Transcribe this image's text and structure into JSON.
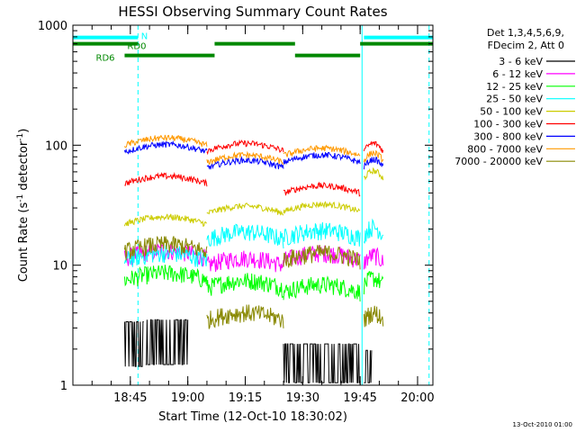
{
  "chart_data": {
    "type": "line",
    "title": "HESSI Observing Summary Count Rates",
    "xlabel": "Start Time (12-Oct-10 18:30:02)",
    "ylabel_main": "Count Rate (s",
    "ylabel_sup1": "-1",
    "ylabel_mid": " detector",
    "ylabel_sup2": "-1",
    "ylabel_end": ")",
    "yscale": "log",
    "ylim": [
      1,
      1000
    ],
    "xlim_minutes": [
      0,
      94
    ],
    "xticks": [
      {
        "m": 15,
        "label": "18:45"
      },
      {
        "m": 30,
        "label": "19:00"
      },
      {
        "m": 45,
        "label": "19:15"
      },
      {
        "m": 60,
        "label": "19:30"
      },
      {
        "m": 75,
        "label": "19:45"
      },
      {
        "m": 90,
        "label": "20:00"
      }
    ],
    "yticks": [
      {
        "v": 1,
        "label": "1"
      },
      {
        "v": 10,
        "label": "10"
      },
      {
        "v": 100,
        "label": "100"
      },
      {
        "v": 1000,
        "label": "1000"
      }
    ],
    "legend_header": [
      "Det 1,3,4,5,6,9,",
      "FDecim 2, Att 0"
    ],
    "series": [
      {
        "name": "3 - 6 keV",
        "color": "#000000",
        "style": "noisy_low",
        "segments": [
          [
            13.5,
            18.5,
            2.6
          ],
          [
            19,
            30,
            2.7
          ],
          [
            55,
            75,
            1.7
          ],
          [
            76,
            78,
            1.5
          ]
        ]
      },
      {
        "name": "6 - 12 keV",
        "color": "#ff00ff",
        "segments": [
          [
            13.5,
            35,
            11.5
          ],
          [
            35,
            55,
            10.0
          ],
          [
            55,
            75,
            11.0
          ],
          [
            76,
            81,
            10.5
          ]
        ]
      },
      {
        "name": "12 - 25 keV",
        "color": "#00ff00",
        "segments": [
          [
            13.5,
            35,
            7.5
          ],
          [
            35,
            55,
            6.5
          ],
          [
            55,
            75,
            6.0
          ],
          [
            76,
            81,
            6.8
          ]
        ]
      },
      {
        "name": "25 - 50 keV",
        "color": "#00ffff",
        "segments": [
          [
            13.5,
            35,
            11.0
          ],
          [
            35,
            55,
            16.5
          ],
          [
            55,
            75,
            17.0
          ],
          [
            76,
            81,
            18.0
          ]
        ]
      },
      {
        "name": "50 - 100 keV",
        "color": "#cccc00",
        "segments": [
          [
            13.5,
            35,
            22.0
          ],
          [
            35,
            55,
            27.0
          ],
          [
            55,
            75,
            28.0
          ],
          [
            76,
            81,
            53.0
          ]
        ]
      },
      {
        "name": "100 - 300 keV",
        "color": "#ff0000",
        "segments": [
          [
            13.5,
            35,
            48.0
          ],
          [
            35,
            55,
            90.0
          ],
          [
            55,
            75,
            40.0
          ],
          [
            76,
            81,
            90.0
          ]
        ]
      },
      {
        "name": "300 - 800 keV",
        "color": "#0000ff",
        "segments": [
          [
            13.5,
            35,
            88.0
          ],
          [
            35,
            55,
            65.0
          ],
          [
            55,
            75,
            72.0
          ],
          [
            76,
            81,
            66.0
          ]
        ]
      },
      {
        "name": "800 - 7000 keV",
        "color": "#ff9900",
        "segments": [
          [
            13.5,
            35,
            100.0
          ],
          [
            35,
            55,
            72.0
          ],
          [
            55,
            75,
            82.0
          ],
          [
            76,
            81,
            75.0
          ]
        ]
      },
      {
        "name": "7000 - 20000 keV",
        "color": "#888800",
        "segments": [
          [
            13.5,
            35,
            13.0
          ],
          [
            35,
            55,
            3.5
          ],
          [
            55,
            75,
            11.0
          ],
          [
            76,
            81,
            3.5
          ]
        ]
      }
    ],
    "state_bars": [
      {
        "label": "",
        "color": "#00ffff",
        "y": 790,
        "from": 0,
        "to": 17
      },
      {
        "label": "",
        "color": "#00ffff",
        "y": 790,
        "from": 76,
        "to": 94
      },
      {
        "label": "",
        "color": "#008800",
        "y": 700,
        "from": 0,
        "to": 17
      },
      {
        "label": "",
        "color": "#008800",
        "y": 700,
        "from": 37,
        "to": 58
      },
      {
        "label": "",
        "color": "#008800",
        "y": 700,
        "from": 75,
        "to": 94
      },
      {
        "label": "",
        "color": "#008800",
        "y": 560,
        "from": 13.5,
        "to": 37
      },
      {
        "label": "",
        "color": "#008800",
        "y": 560,
        "from": 58,
        "to": 75
      }
    ],
    "state_labels": [
      {
        "text": "N",
        "color": "#00ffff",
        "m": 17.8,
        "y": 820
      },
      {
        "text": "RD0",
        "color": "#008800",
        "m": 14.2,
        "y": 680
      },
      {
        "text": "RD6",
        "color": "#008800",
        "m": 6.0,
        "y": 540
      }
    ],
    "vlines_solid": [
      0,
      75.5
    ],
    "vlines_dashed": [
      17.0,
      93.0
    ],
    "footer": "13-Oct-2010 01:00"
  }
}
